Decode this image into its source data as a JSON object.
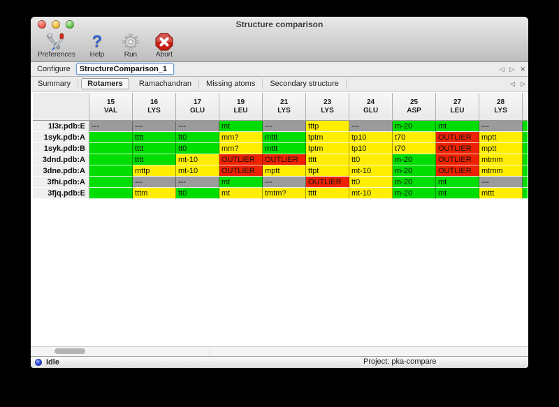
{
  "window": {
    "title": "Structure comparison"
  },
  "toolbar": {
    "buttons": [
      {
        "id": "preferences",
        "label": "Preferences",
        "icon": "tools-icon"
      },
      {
        "id": "help",
        "label": "Help",
        "icon": "question-mark-icon"
      },
      {
        "id": "run",
        "label": "Run",
        "icon": "gear-icon"
      },
      {
        "id": "abort",
        "label": "Abort",
        "icon": "stop-x-icon"
      }
    ]
  },
  "configure": {
    "label": "Configure",
    "value": "StructureComparison_1"
  },
  "icons": {
    "back": "◁",
    "forward": "▷",
    "close": "✕"
  },
  "tabs": {
    "items": [
      "Summary",
      "Rotamers",
      "Ramachandran",
      "Missing atoms",
      "Secondary structure"
    ],
    "active": "Rotamers"
  },
  "colors": {
    "green": "#00dd00",
    "yellow": "#ffee00",
    "gray": "#9b9b9b",
    "red": "#ee2200"
  },
  "table": {
    "columns": [
      {
        "num": "15",
        "res": "VAL"
      },
      {
        "num": "16",
        "res": "LYS"
      },
      {
        "num": "17",
        "res": "GLU"
      },
      {
        "num": "19",
        "res": "LEU"
      },
      {
        "num": "21",
        "res": "LYS"
      },
      {
        "num": "23",
        "res": "LYS"
      },
      {
        "num": "24",
        "res": "GLU"
      },
      {
        "num": "25",
        "res": "ASP"
      },
      {
        "num": "27",
        "res": "LEU"
      },
      {
        "num": "28",
        "res": "LYS"
      }
    ],
    "rows": [
      {
        "label": "1l3r.pdb:E",
        "cells": [
          {
            "t": "---",
            "c": "gray"
          },
          {
            "t": "---",
            "c": "gray"
          },
          {
            "t": "---",
            "c": "gray"
          },
          {
            "t": "mt",
            "c": "green"
          },
          {
            "t": "---",
            "c": "gray"
          },
          {
            "t": "tttp",
            "c": "yellow"
          },
          {
            "t": "---",
            "c": "gray"
          },
          {
            "t": "m-20",
            "c": "green"
          },
          {
            "t": "mt",
            "c": "green"
          },
          {
            "t": "---",
            "c": "gray"
          }
        ]
      },
      {
        "label": "1syk.pdb:A",
        "cells": [
          {
            "t": "",
            "c": "green"
          },
          {
            "t": "tttt",
            "c": "green"
          },
          {
            "t": "tt0",
            "c": "green"
          },
          {
            "t": "mm?",
            "c": "yellow"
          },
          {
            "t": "mttt",
            "c": "green"
          },
          {
            "t": "tptm",
            "c": "yellow"
          },
          {
            "t": "tp10",
            "c": "yellow"
          },
          {
            "t": "t70",
            "c": "yellow"
          },
          {
            "t": "OUTLIER",
            "c": "red"
          },
          {
            "t": "mptt",
            "c": "yellow"
          }
        ]
      },
      {
        "label": "1syk.pdb:B",
        "cells": [
          {
            "t": "",
            "c": "green"
          },
          {
            "t": "tttt",
            "c": "green"
          },
          {
            "t": "tt0",
            "c": "green"
          },
          {
            "t": "mm?",
            "c": "yellow"
          },
          {
            "t": "mttt",
            "c": "green"
          },
          {
            "t": "tptm",
            "c": "yellow"
          },
          {
            "t": "tp10",
            "c": "yellow"
          },
          {
            "t": "t70",
            "c": "yellow"
          },
          {
            "t": "OUTLIER",
            "c": "red"
          },
          {
            "t": "mptt",
            "c": "yellow"
          }
        ]
      },
      {
        "label": "3dnd.pdb:A",
        "cells": [
          {
            "t": "",
            "c": "green"
          },
          {
            "t": "tttt",
            "c": "green"
          },
          {
            "t": "mt-10",
            "c": "yellow"
          },
          {
            "t": "OUTLIER",
            "c": "red"
          },
          {
            "t": "OUTLIER",
            "c": "red"
          },
          {
            "t": "tttt",
            "c": "yellow"
          },
          {
            "t": "tt0",
            "c": "yellow"
          },
          {
            "t": "m-20",
            "c": "green"
          },
          {
            "t": "OUTLIER",
            "c": "red"
          },
          {
            "t": "mtmm",
            "c": "yellow"
          }
        ]
      },
      {
        "label": "3dne.pdb:A",
        "cells": [
          {
            "t": "",
            "c": "green"
          },
          {
            "t": "mttp",
            "c": "yellow"
          },
          {
            "t": "mt-10",
            "c": "yellow"
          },
          {
            "t": "OUTLIER",
            "c": "red"
          },
          {
            "t": "mptt",
            "c": "yellow"
          },
          {
            "t": "ttpt",
            "c": "yellow"
          },
          {
            "t": "mt-10",
            "c": "yellow"
          },
          {
            "t": "m-20",
            "c": "green"
          },
          {
            "t": "OUTLIER",
            "c": "red"
          },
          {
            "t": "mtmm",
            "c": "yellow"
          }
        ]
      },
      {
        "label": "3fhi.pdb:A",
        "cells": [
          {
            "t": "",
            "c": "green"
          },
          {
            "t": "---",
            "c": "gray"
          },
          {
            "t": "---",
            "c": "gray"
          },
          {
            "t": "mt",
            "c": "green"
          },
          {
            "t": "---",
            "c": "gray"
          },
          {
            "t": "OUTLIER",
            "c": "red"
          },
          {
            "t": "tt0",
            "c": "yellow"
          },
          {
            "t": "m-20",
            "c": "green"
          },
          {
            "t": "mt",
            "c": "green"
          },
          {
            "t": "---",
            "c": "gray"
          }
        ]
      },
      {
        "label": "3fjq.pdb:E",
        "cells": [
          {
            "t": "",
            "c": "green"
          },
          {
            "t": "tttm",
            "c": "yellow"
          },
          {
            "t": "tt0",
            "c": "green"
          },
          {
            "t": "mt",
            "c": "yellow"
          },
          {
            "t": "tmtm?",
            "c": "yellow"
          },
          {
            "t": "tttt",
            "c": "yellow"
          },
          {
            "t": "mt-10",
            "c": "yellow"
          },
          {
            "t": "m-20",
            "c": "green"
          },
          {
            "t": "mt",
            "c": "green"
          },
          {
            "t": "mttt",
            "c": "yellow"
          }
        ]
      }
    ],
    "overflow_color": "green"
  },
  "statusbar": {
    "status": "Idle",
    "project": "Project: pka-compare"
  }
}
